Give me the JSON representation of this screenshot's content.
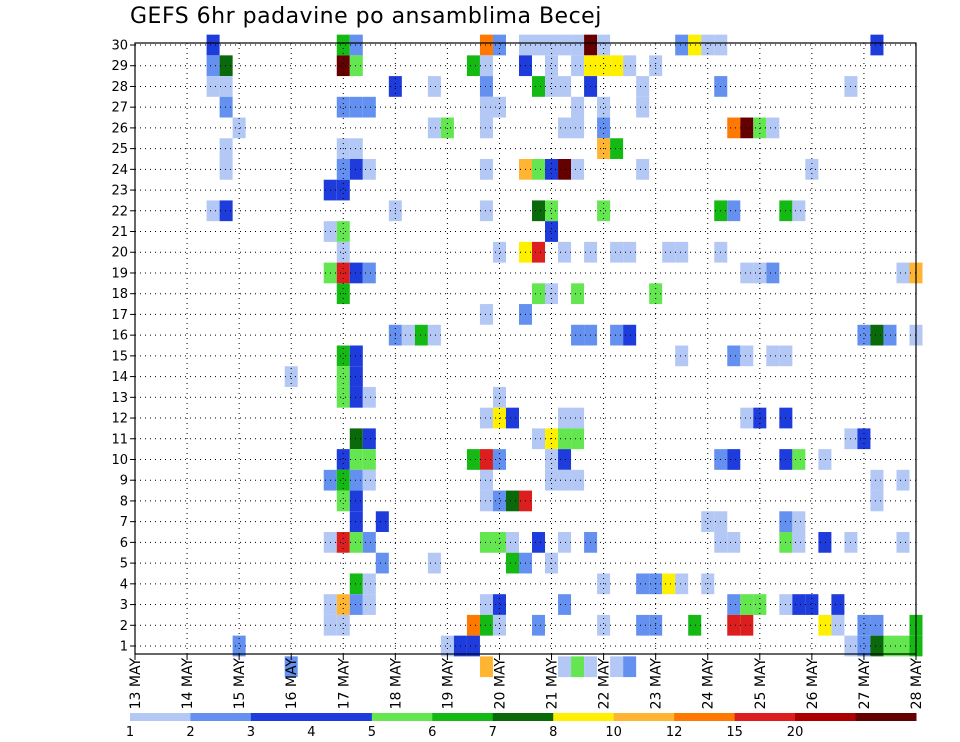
{
  "chart_data": {
    "type": "heatmap",
    "title": "GEFS 6hr padavine po ansamblima Becej",
    "xlabel": "",
    "ylabel": "",
    "x_tick_labels": [
      "13 MAY",
      "14 MAY",
      "15 MAY",
      "16 MAY",
      "17 MAY",
      "18 MAY",
      "19 MAY",
      "20 MAY",
      "21 MAY",
      "22 MAY",
      "23 MAY",
      "24 MAY",
      "25 MAY",
      "26 MAY",
      "27 MAY",
      "28 MAY"
    ],
    "y_tick_labels": [
      "1",
      "2",
      "3",
      "4",
      "5",
      "6",
      "7",
      "8",
      "9",
      "10",
      "11",
      "12",
      "13",
      "14",
      "15",
      "16",
      "17",
      "18",
      "19",
      "20",
      "21",
      "22",
      "23",
      "24",
      "25",
      "26",
      "27",
      "28",
      "29",
      "30"
    ],
    "x_range": [
      0,
      60
    ],
    "y_range": [
      1,
      30
    ],
    "grid": true,
    "legend": "bottom",
    "legend_thresholds": [
      "1",
      "2",
      "3",
      "4",
      "5",
      "6",
      "7",
      "8",
      "10",
      "12",
      "15",
      "20"
    ],
    "legend_colors": [
      "#b4c8f5",
      "#6491f0",
      "#1e3cdc",
      "#1e3cdc",
      "#64e650",
      "#14b914",
      "#0a690a",
      "#fff000",
      "#ffb432",
      "#ff7800",
      "#dc1e1e",
      "#aa0000",
      "#640000"
    ],
    "value_colors": {
      "1": "#b4c8f5",
      "2": "#6491f0",
      "3": "#1e3cdc",
      "5": "#64e650",
      "6": "#14b914",
      "7": "#0a690a",
      "8": "#fff000",
      "10": "#ffb432",
      "12": "#ff7800",
      "15": "#dc1e1e",
      "20": "#640000"
    },
    "cells": [
      [
        6,
        30,
        3
      ],
      [
        16,
        30,
        6
      ],
      [
        17,
        30,
        2
      ],
      [
        27,
        30,
        12
      ],
      [
        28,
        30,
        2
      ],
      [
        30,
        30,
        1
      ],
      [
        31,
        30,
        1
      ],
      [
        32,
        30,
        1
      ],
      [
        33,
        30,
        1
      ],
      [
        34,
        30,
        1
      ],
      [
        35,
        30,
        20
      ],
      [
        36,
        30,
        1
      ],
      [
        42,
        30,
        2
      ],
      [
        43,
        30,
        8
      ],
      [
        44,
        30,
        1
      ],
      [
        45,
        30,
        1
      ],
      [
        57,
        30,
        3
      ],
      [
        6,
        29,
        2
      ],
      [
        7,
        29,
        7
      ],
      [
        16,
        29,
        20
      ],
      [
        17,
        29,
        5
      ],
      [
        26,
        29,
        6
      ],
      [
        27,
        29,
        1
      ],
      [
        30,
        29,
        3
      ],
      [
        32,
        29,
        1
      ],
      [
        34,
        29,
        1
      ],
      [
        35,
        29,
        8
      ],
      [
        36,
        29,
        8
      ],
      [
        37,
        29,
        8
      ],
      [
        38,
        29,
        1
      ],
      [
        40,
        29,
        1
      ],
      [
        6,
        28,
        1
      ],
      [
        7,
        28,
        1
      ],
      [
        20,
        28,
        3
      ],
      [
        23,
        28,
        1
      ],
      [
        27,
        28,
        2
      ],
      [
        31,
        28,
        6
      ],
      [
        32,
        28,
        1
      ],
      [
        33,
        28,
        1
      ],
      [
        35,
        28,
        3
      ],
      [
        39,
        28,
        1
      ],
      [
        45,
        28,
        2
      ],
      [
        55,
        28,
        1
      ],
      [
        7,
        27,
        2
      ],
      [
        16,
        27,
        2
      ],
      [
        17,
        27,
        2
      ],
      [
        18,
        27,
        2
      ],
      [
        27,
        27,
        1
      ],
      [
        28,
        27,
        1
      ],
      [
        34,
        27,
        1
      ],
      [
        36,
        27,
        1
      ],
      [
        39,
        27,
        1
      ],
      [
        8,
        26,
        1
      ],
      [
        23,
        26,
        1
      ],
      [
        24,
        26,
        5
      ],
      [
        27,
        26,
        1
      ],
      [
        33,
        26,
        1
      ],
      [
        34,
        26,
        1
      ],
      [
        36,
        26,
        2
      ],
      [
        46,
        26,
        12
      ],
      [
        47,
        26,
        20
      ],
      [
        48,
        26,
        5
      ],
      [
        49,
        26,
        1
      ],
      [
        7,
        25,
        1
      ],
      [
        16,
        25,
        1
      ],
      [
        17,
        25,
        1
      ],
      [
        36,
        25,
        10
      ],
      [
        37,
        25,
        6
      ],
      [
        7,
        24,
        1
      ],
      [
        16,
        24,
        2
      ],
      [
        17,
        24,
        3
      ],
      [
        18,
        24,
        1
      ],
      [
        27,
        24,
        1
      ],
      [
        30,
        24,
        10
      ],
      [
        31,
        24,
        5
      ],
      [
        32,
        24,
        3
      ],
      [
        33,
        24,
        20
      ],
      [
        34,
        24,
        1
      ],
      [
        39,
        24,
        1
      ],
      [
        52,
        24,
        1
      ],
      [
        15,
        23,
        3
      ],
      [
        16,
        23,
        3
      ],
      [
        6,
        22,
        1
      ],
      [
        7,
        22,
        3
      ],
      [
        20,
        22,
        1
      ],
      [
        27,
        22,
        1
      ],
      [
        31,
        22,
        7
      ],
      [
        32,
        22,
        5
      ],
      [
        36,
        22,
        5
      ],
      [
        45,
        22,
        6
      ],
      [
        46,
        22,
        2
      ],
      [
        50,
        22,
        6
      ],
      [
        51,
        22,
        1
      ],
      [
        15,
        21,
        1
      ],
      [
        16,
        21,
        5
      ],
      [
        32,
        21,
        3
      ],
      [
        16,
        20,
        1
      ],
      [
        28,
        20,
        1
      ],
      [
        30,
        20,
        8
      ],
      [
        31,
        20,
        15
      ],
      [
        33,
        20,
        1
      ],
      [
        35,
        20,
        1
      ],
      [
        37,
        20,
        1
      ],
      [
        38,
        20,
        1
      ],
      [
        41,
        20,
        1
      ],
      [
        42,
        20,
        1
      ],
      [
        45,
        20,
        1
      ],
      [
        15,
        19,
        5
      ],
      [
        16,
        19,
        15
      ],
      [
        17,
        19,
        3
      ],
      [
        18,
        19,
        2
      ],
      [
        47,
        19,
        1
      ],
      [
        48,
        19,
        1
      ],
      [
        49,
        19,
        2
      ],
      [
        59,
        19,
        1
      ],
      [
        60,
        19,
        10
      ],
      [
        16,
        18,
        6
      ],
      [
        31,
        18,
        5
      ],
      [
        32,
        18,
        1
      ],
      [
        34,
        18,
        5
      ],
      [
        40,
        18,
        5
      ],
      [
        27,
        17,
        1
      ],
      [
        30,
        17,
        2
      ],
      [
        20,
        16,
        2
      ],
      [
        21,
        16,
        1
      ],
      [
        22,
        16,
        6
      ],
      [
        23,
        16,
        1
      ],
      [
        34,
        16,
        2
      ],
      [
        35,
        16,
        2
      ],
      [
        37,
        16,
        2
      ],
      [
        38,
        16,
        3
      ],
      [
        56,
        16,
        2
      ],
      [
        57,
        16,
        7
      ],
      [
        58,
        16,
        2
      ],
      [
        60,
        16,
        1
      ],
      [
        16,
        15,
        6
      ],
      [
        17,
        15,
        3
      ],
      [
        42,
        15,
        1
      ],
      [
        46,
        15,
        2
      ],
      [
        47,
        15,
        1
      ],
      [
        49,
        15,
        1
      ],
      [
        50,
        15,
        1
      ],
      [
        12,
        14,
        1
      ],
      [
        16,
        14,
        5
      ],
      [
        17,
        14,
        3
      ],
      [
        16,
        13,
        5
      ],
      [
        17,
        13,
        3
      ],
      [
        18,
        13,
        1
      ],
      [
        28,
        13,
        1
      ],
      [
        27,
        12,
        1
      ],
      [
        28,
        12,
        8
      ],
      [
        29,
        12,
        3
      ],
      [
        33,
        12,
        1
      ],
      [
        34,
        12,
        1
      ],
      [
        47,
        12,
        1
      ],
      [
        48,
        12,
        3
      ],
      [
        50,
        12,
        3
      ],
      [
        17,
        11,
        7
      ],
      [
        18,
        11,
        3
      ],
      [
        31,
        11,
        1
      ],
      [
        32,
        11,
        8
      ],
      [
        33,
        11,
        5
      ],
      [
        34,
        11,
        5
      ],
      [
        55,
        11,
        1
      ],
      [
        56,
        11,
        3
      ],
      [
        16,
        10,
        3
      ],
      [
        17,
        10,
        5
      ],
      [
        18,
        10,
        5
      ],
      [
        26,
        10,
        6
      ],
      [
        27,
        10,
        15
      ],
      [
        28,
        10,
        2
      ],
      [
        32,
        10,
        1
      ],
      [
        33,
        10,
        3
      ],
      [
        45,
        10,
        2
      ],
      [
        46,
        10,
        3
      ],
      [
        50,
        10,
        3
      ],
      [
        51,
        10,
        5
      ],
      [
        53,
        10,
        1
      ],
      [
        15,
        9,
        2
      ],
      [
        16,
        9,
        6
      ],
      [
        17,
        9,
        2
      ],
      [
        18,
        9,
        1
      ],
      [
        27,
        9,
        1
      ],
      [
        32,
        9,
        1
      ],
      [
        33,
        9,
        1
      ],
      [
        34,
        9,
        1
      ],
      [
        57,
        9,
        1
      ],
      [
        59,
        9,
        1
      ],
      [
        16,
        8,
        5
      ],
      [
        17,
        8,
        3
      ],
      [
        27,
        8,
        1
      ],
      [
        28,
        8,
        2
      ],
      [
        29,
        8,
        7
      ],
      [
        30,
        8,
        15
      ],
      [
        57,
        8,
        1
      ],
      [
        17,
        7,
        3
      ],
      [
        19,
        7,
        3
      ],
      [
        44,
        7,
        1
      ],
      [
        45,
        7,
        1
      ],
      [
        50,
        7,
        2
      ],
      [
        51,
        7,
        1
      ],
      [
        15,
        6,
        1
      ],
      [
        16,
        6,
        15
      ],
      [
        17,
        6,
        5
      ],
      [
        18,
        6,
        2
      ],
      [
        27,
        6,
        5
      ],
      [
        28,
        6,
        5
      ],
      [
        29,
        6,
        1
      ],
      [
        31,
        6,
        3
      ],
      [
        33,
        6,
        1
      ],
      [
        35,
        6,
        2
      ],
      [
        45,
        6,
        1
      ],
      [
        46,
        6,
        1
      ],
      [
        50,
        6,
        5
      ],
      [
        51,
        6,
        1
      ],
      [
        53,
        6,
        3
      ],
      [
        55,
        6,
        1
      ],
      [
        59,
        6,
        1
      ],
      [
        19,
        5,
        2
      ],
      [
        23,
        5,
        1
      ],
      [
        29,
        5,
        6
      ],
      [
        30,
        5,
        2
      ],
      [
        32,
        5,
        1
      ],
      [
        17,
        4,
        6
      ],
      [
        18,
        4,
        1
      ],
      [
        36,
        4,
        1
      ],
      [
        39,
        4,
        2
      ],
      [
        40,
        4,
        2
      ],
      [
        41,
        4,
        8
      ],
      [
        42,
        4,
        1
      ],
      [
        44,
        4,
        1
      ],
      [
        15,
        3,
        1
      ],
      [
        16,
        3,
        10
      ],
      [
        17,
        3,
        2
      ],
      [
        18,
        3,
        1
      ],
      [
        27,
        3,
        1
      ],
      [
        28,
        3,
        3
      ],
      [
        33,
        3,
        2
      ],
      [
        46,
        3,
        2
      ],
      [
        47,
        3,
        5
      ],
      [
        48,
        3,
        5
      ],
      [
        50,
        3,
        1
      ],
      [
        51,
        3,
        3
      ],
      [
        52,
        3,
        3
      ],
      [
        54,
        3,
        3
      ],
      [
        15,
        2,
        1
      ],
      [
        16,
        2,
        1
      ],
      [
        26,
        2,
        12
      ],
      [
        27,
        2,
        6
      ],
      [
        28,
        2,
        1
      ],
      [
        31,
        2,
        2
      ],
      [
        36,
        2,
        1
      ],
      [
        39,
        2,
        2
      ],
      [
        40,
        2,
        2
      ],
      [
        43,
        2,
        6
      ],
      [
        46,
        2,
        15
      ],
      [
        47,
        2,
        15
      ],
      [
        53,
        2,
        8
      ],
      [
        54,
        2,
        1
      ],
      [
        56,
        2,
        2
      ],
      [
        57,
        2,
        2
      ],
      [
        60,
        2,
        6
      ],
      [
        8,
        1,
        2
      ],
      [
        24,
        1,
        1
      ],
      [
        25,
        1,
        3
      ],
      [
        26,
        1,
        3
      ],
      [
        55,
        1,
        1
      ],
      [
        56,
        1,
        2
      ],
      [
        57,
        1,
        7
      ],
      [
        58,
        1,
        5
      ],
      [
        59,
        1,
        5
      ],
      [
        60,
        1,
        6
      ],
      [
        12,
        0,
        2
      ],
      [
        27,
        0,
        10
      ],
      [
        33,
        0,
        1
      ],
      [
        34,
        0,
        5
      ],
      [
        35,
        0,
        1
      ],
      [
        37,
        0,
        1
      ],
      [
        38,
        0,
        2
      ]
    ]
  }
}
